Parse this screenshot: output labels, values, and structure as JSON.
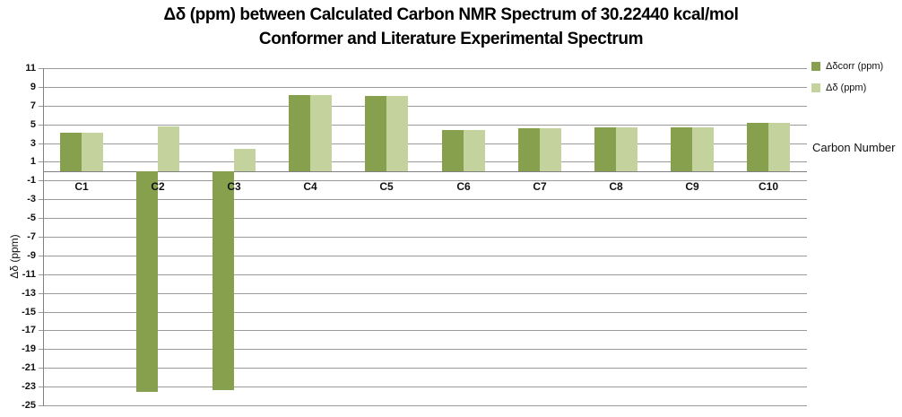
{
  "title": {
    "line1": "Δδ (ppm) between Calculated Carbon NMR Spectrum of 30.22440 kcal/mol",
    "line2": "Conformer and Literature Experimental Spectrum"
  },
  "axis_titles": {
    "y": "Δδ (ppm)",
    "x": "Carbon Number"
  },
  "legend": [
    {
      "label": "Δδcorr (ppm)",
      "color": "#87A04D"
    },
    {
      "label": "Δδ (ppm)",
      "color": "#C4D29E"
    }
  ],
  "colors": {
    "series_dark": "#87A04D",
    "series_light": "#C4D29E",
    "gridline": "#9b9b9b",
    "axis": "#808080",
    "text": "#111111"
  },
  "chart_data": {
    "type": "bar",
    "title": "Δδ (ppm) between Calculated Carbon NMR Spectrum of 30.22440 kcal/mol Conformer and Literature Experimental Spectrum",
    "categories": [
      "C1",
      "C2",
      "C3",
      "C4",
      "C5",
      "C6",
      "C7",
      "C8",
      "C9",
      "C10"
    ],
    "series": [
      {
        "name": "Δδcorr (ppm)",
        "color": "#87A04D",
        "values": [
          4.1,
          -23.6,
          -23.4,
          8.1,
          8.0,
          4.4,
          4.6,
          4.65,
          4.7,
          5.2
        ]
      },
      {
        "name": "Δδ (ppm)",
        "color": "#C4D29E",
        "values": [
          4.1,
          4.8,
          2.4,
          8.1,
          8.0,
          4.4,
          4.6,
          4.65,
          4.7,
          5.2
        ]
      }
    ],
    "xlabel": "Carbon Number",
    "ylabel": "Δδ (ppm)",
    "ylim": [
      -25,
      11
    ],
    "ytick_step": 2,
    "grid": true,
    "legend_position": "top-right"
  }
}
